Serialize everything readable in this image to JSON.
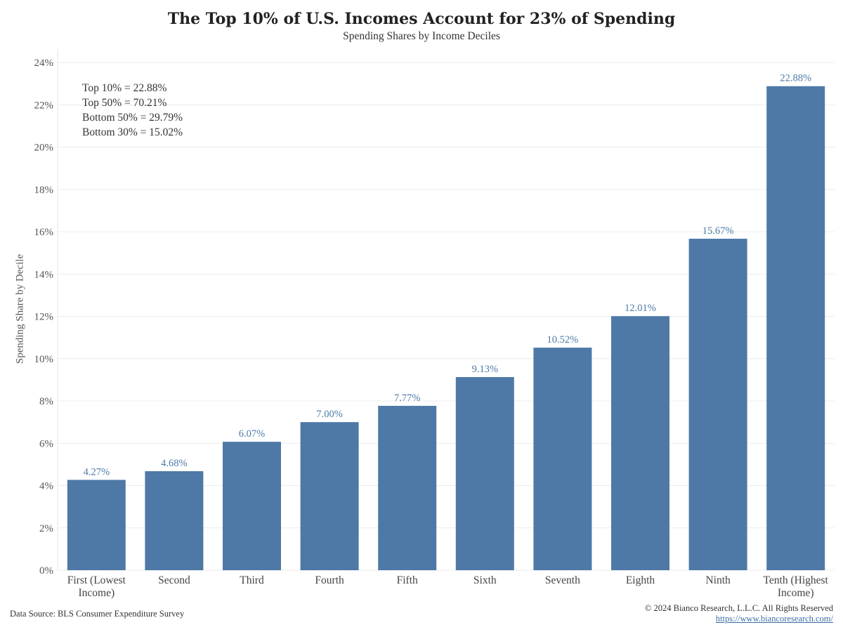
{
  "title": "The Top 10% of U.S. Incomes Account for 23% of Spending",
  "subtitle": "Spending Shares by Income Deciles",
  "annotations": [
    "Top 10% = 22.88%",
    "Top 50% = 70.21%",
    "Bottom 50% = 29.79%",
    "Bottom 30% = 15.02%"
  ],
  "source": "Data Source: BLS Consumer Expenditure Survey",
  "copyright": "© 2024 Bianco Research, L.L.C. All Rights Reserved",
  "url": "https://www.biancoresearch.com/",
  "colors": {
    "bar": "#4e79a7",
    "label": "#4c7aa8",
    "grid": "#ececec"
  },
  "chart_data": {
    "type": "bar",
    "title": "The Top 10% of U.S. Incomes Account for 23% of Spending",
    "subtitle": "Spending Shares by Income Deciles",
    "xlabel": "",
    "ylabel": "Spending Share by Decile",
    "ylim": [
      0,
      24
    ],
    "yticks": [
      0,
      2,
      4,
      6,
      8,
      10,
      12,
      14,
      16,
      18,
      20,
      22,
      24
    ],
    "ytick_labels": [
      "0%",
      "2%",
      "4%",
      "6%",
      "8%",
      "10%",
      "12%",
      "14%",
      "16%",
      "18%",
      "20%",
      "22%",
      "24%"
    ],
    "categories": [
      [
        "First (Lowest",
        "Income)"
      ],
      [
        "Second"
      ],
      [
        "Third"
      ],
      [
        "Fourth"
      ],
      [
        "Fifth"
      ],
      [
        "Sixth"
      ],
      [
        "Seventh"
      ],
      [
        "Eighth"
      ],
      [
        "Ninth"
      ],
      [
        "Tenth (Highest",
        "Income)"
      ]
    ],
    "values": [
      4.27,
      4.68,
      6.07,
      7.0,
      7.77,
      9.13,
      10.52,
      12.01,
      15.67,
      22.88
    ],
    "value_labels": [
      "4.27%",
      "4.68%",
      "6.07%",
      "7.00%",
      "7.77%",
      "9.13%",
      "10.52%",
      "12.01%",
      "15.67%",
      "22.88%"
    ],
    "grid": true
  }
}
